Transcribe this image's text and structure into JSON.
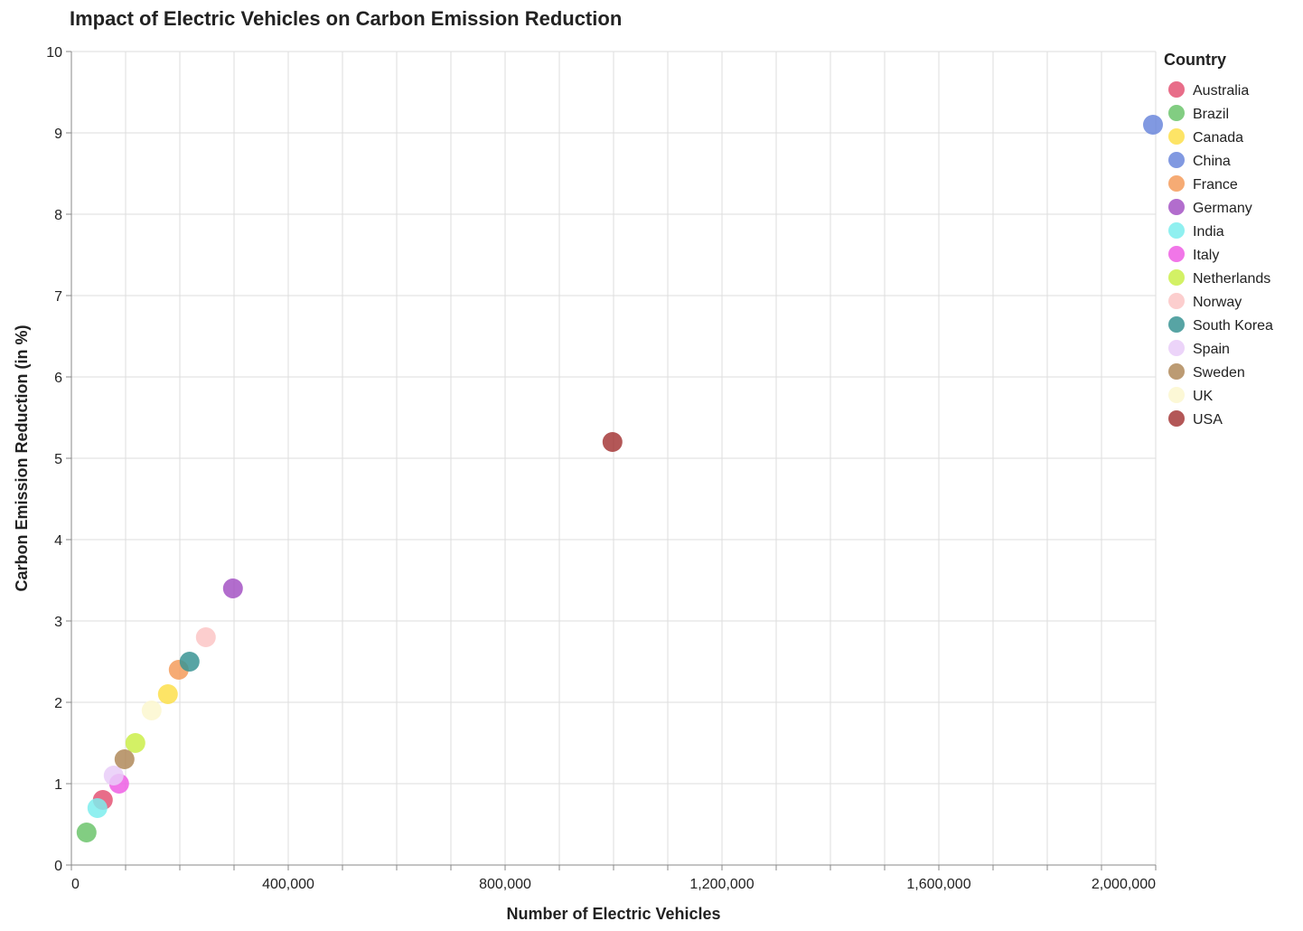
{
  "chart_data": {
    "type": "scatter",
    "title": "Impact of Electric Vehicles on Carbon Emission Reduction",
    "xlabel": "Number of Electric Vehicles",
    "ylabel": "Carbon Emission Reduction (in %)",
    "xlim": [
      0,
      2000000
    ],
    "ylim": [
      0,
      10
    ],
    "x_ticks": [
      0,
      400000,
      800000,
      1200000,
      1600000,
      2000000
    ],
    "x_tick_labels": [
      "0",
      "400,000",
      "800,000",
      "1,200,000",
      "1,600,000",
      "2,000,000"
    ],
    "y_ticks": [
      0,
      1,
      2,
      3,
      4,
      5,
      6,
      7,
      8,
      9,
      10
    ],
    "y_tick_labels": [
      "0",
      "1",
      "2",
      "3",
      "4",
      "5",
      "6",
      "7",
      "8",
      "9",
      "10"
    ],
    "grid": true,
    "legend": {
      "title": "Country",
      "position": "right"
    },
    "points": [
      {
        "country": "Australia",
        "x": 58000,
        "y": 0.8,
        "color": "#e45474"
      },
      {
        "country": "Brazil",
        "x": 28000,
        "y": 0.4,
        "color": "#6cc46c"
      },
      {
        "country": "Canada",
        "x": 178000,
        "y": 2.1,
        "color": "#fddf4b"
      },
      {
        "country": "China",
        "x": 1995000,
        "y": 9.1,
        "color": "#6b87dc"
      },
      {
        "country": "France",
        "x": 198000,
        "y": 2.4,
        "color": "#f59c5c"
      },
      {
        "country": "Germany",
        "x": 298000,
        "y": 3.4,
        "color": "#a553c4"
      },
      {
        "country": "India",
        "x": 48000,
        "y": 0.7,
        "color": "#7deded"
      },
      {
        "country": "Italy",
        "x": 88000,
        "y": 1.0,
        "color": "#ee5ee4"
      },
      {
        "country": "Netherlands",
        "x": 118000,
        "y": 1.5,
        "color": "#cbee4a"
      },
      {
        "country": "Norway",
        "x": 248000,
        "y": 2.8,
        "color": "#fcc5c5"
      },
      {
        "country": "South Korea",
        "x": 218000,
        "y": 2.5,
        "color": "#3a9494"
      },
      {
        "country": "Spain",
        "x": 78000,
        "y": 1.1,
        "color": "#e9cdf8"
      },
      {
        "country": "Sweden",
        "x": 98000,
        "y": 1.3,
        "color": "#b08a5a"
      },
      {
        "country": "UK",
        "x": 148000,
        "y": 1.9,
        "color": "#fcf7cf"
      },
      {
        "country": "USA",
        "x": 998000,
        "y": 5.2,
        "color": "#a63a3a"
      }
    ]
  }
}
